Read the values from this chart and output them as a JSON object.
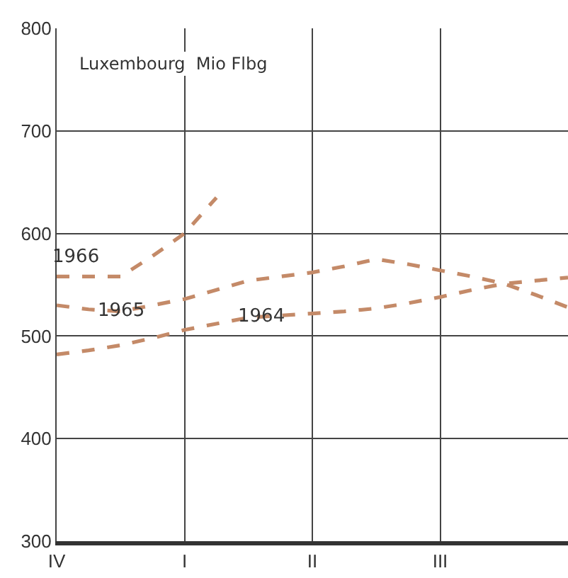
{
  "chart_data": {
    "type": "line",
    "title": "Luxembourg  Mio Flbg",
    "categories": [
      "IV",
      null,
      null,
      null,
      "I",
      null,
      null,
      null,
      "II",
      null,
      null,
      null,
      "III",
      null,
      null,
      null,
      null
    ],
    "ylim": [
      300,
      800
    ],
    "yticks": [
      300,
      400,
      500,
      600,
      700,
      800
    ],
    "grid": true,
    "line_style": "dashed",
    "marker": "none",
    "series": [
      {
        "name": "1966",
        "color": "#c48a68",
        "values": [
          558,
          558,
          558,
          578,
          600,
          635,
          null,
          null,
          null,
          null,
          null,
          null,
          null,
          null,
          null,
          null,
          null
        ]
      },
      {
        "name": "1965",
        "color": "#c48a68",
        "values": [
          530,
          526,
          524,
          530,
          536,
          545,
          554,
          558,
          562,
          568,
          575,
          570,
          564,
          558,
          551,
          540,
          528
        ]
      },
      {
        "name": "1964",
        "color": "#c48a68",
        "values": [
          482,
          486,
          491,
          498,
          506,
          512,
          518,
          520,
          522,
          524,
          527,
          532,
          538,
          545,
          551,
          554,
          557
        ]
      }
    ]
  }
}
